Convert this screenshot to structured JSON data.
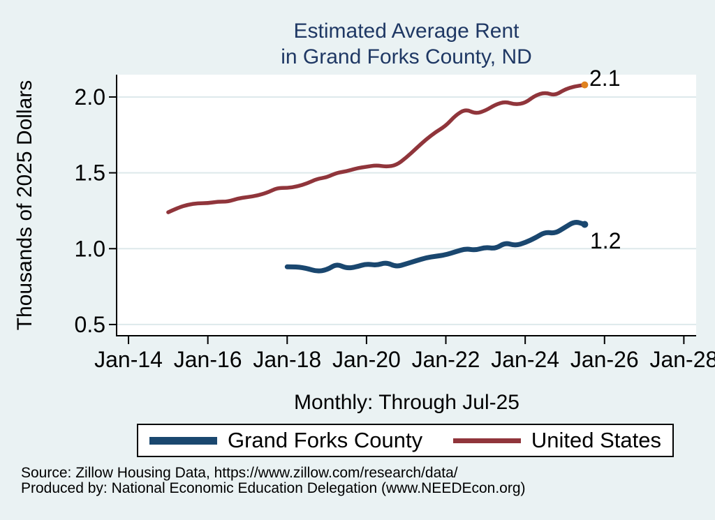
{
  "title": {
    "line1": "Estimated Average Rent",
    "line2": "in Grand Forks County, ND"
  },
  "subtitle": "Monthly: Through Jul-25",
  "y_axis": {
    "label": "Thousands of 2025 Dollars",
    "tick_labels": [
      "2.0",
      "1.5",
      "1.0",
      "0.5"
    ],
    "tick_values": [
      2.0,
      1.5,
      1.0,
      0.5
    ]
  },
  "x_axis": {
    "tick_labels": [
      "Jan-14",
      "Jan-16",
      "Jan-18",
      "Jan-20",
      "Jan-22",
      "Jan-24",
      "Jan-26",
      "Jan-28"
    ],
    "tick_values": [
      2014,
      2016,
      2018,
      2020,
      2022,
      2024,
      2026,
      2028
    ]
  },
  "end_labels": {
    "us": "2.1",
    "county": "1.2"
  },
  "legend": [
    {
      "label": "Grand Forks County",
      "color": "#1a476f"
    },
    {
      "label": "United States",
      "color": "#90353b"
    }
  ],
  "source": {
    "line1": "Source: Zillow Housing Data, https://www.zillow.com/research/data/",
    "line2": "Produced by: National Economic Education Delegation (www.NEEDEcon.org)"
  },
  "colors": {
    "background": "#eaf2f3",
    "plot_background": "#ffffff",
    "grid": "#dde9eb",
    "axis": "#000000",
    "title_text": "#1f3864",
    "county_line": "#1a476f",
    "us_line": "#90353b",
    "end_marker": "#e0821f"
  },
  "chart_data": {
    "type": "line",
    "title": "Estimated Average Rent in Grand Forks County, ND",
    "xlabel": "",
    "ylabel": "Thousands of 2025 Dollars",
    "note": "Monthly: Through Jul-25",
    "x_unit": "decimal_year",
    "xlim": [
      2013.7,
      2028.31
    ],
    "ylim": [
      0.426,
      2.147
    ],
    "grid": true,
    "legend_position": "bottom",
    "series": [
      {
        "name": "United States",
        "color": "#90353b",
        "line_width": 5.5,
        "end_label": "2.1",
        "end_marker_color": "#e0821f",
        "x": [
          2015.0,
          2015.25,
          2015.5,
          2015.75,
          2016.0,
          2016.25,
          2016.5,
          2016.75,
          2017.0,
          2017.25,
          2017.5,
          2017.75,
          2018.0,
          2018.25,
          2018.5,
          2018.75,
          2019.0,
          2019.25,
          2019.5,
          2019.75,
          2020.0,
          2020.25,
          2020.5,
          2020.75,
          2021.0,
          2021.25,
          2021.5,
          2021.75,
          2022.0,
          2022.25,
          2022.5,
          2022.75,
          2023.0,
          2023.25,
          2023.5,
          2023.75,
          2024.0,
          2024.25,
          2024.5,
          2024.75,
          2025.0,
          2025.25,
          2025.5
        ],
        "values": [
          1.24,
          1.27,
          1.29,
          1.3,
          1.3,
          1.31,
          1.31,
          1.33,
          1.34,
          1.35,
          1.37,
          1.4,
          1.4,
          1.41,
          1.43,
          1.46,
          1.47,
          1.5,
          1.51,
          1.53,
          1.54,
          1.55,
          1.54,
          1.55,
          1.6,
          1.66,
          1.72,
          1.77,
          1.81,
          1.88,
          1.92,
          1.89,
          1.91,
          1.95,
          1.97,
          1.95,
          1.96,
          2.01,
          2.03,
          2.01,
          2.05,
          2.07,
          2.08
        ]
      },
      {
        "name": "Grand Forks County",
        "color": "#1a476f",
        "line_width": 7,
        "end_label": "1.2",
        "end_marker_color": "#1a476f",
        "x": [
          2018.0,
          2018.25,
          2018.5,
          2018.75,
          2019.0,
          2019.25,
          2019.5,
          2019.75,
          2020.0,
          2020.25,
          2020.5,
          2020.75,
          2021.0,
          2021.25,
          2021.5,
          2021.75,
          2022.0,
          2022.25,
          2022.5,
          2022.75,
          2023.0,
          2023.25,
          2023.5,
          2023.75,
          2024.0,
          2024.25,
          2024.5,
          2024.75,
          2025.0,
          2025.25,
          2025.5
        ],
        "values": [
          0.88,
          0.88,
          0.87,
          0.85,
          0.86,
          0.9,
          0.87,
          0.88,
          0.9,
          0.89,
          0.91,
          0.88,
          0.9,
          0.92,
          0.94,
          0.95,
          0.96,
          0.98,
          1.0,
          0.99,
          1.01,
          1.0,
          1.04,
          1.02,
          1.04,
          1.07,
          1.11,
          1.1,
          1.14,
          1.18,
          1.16
        ]
      }
    ]
  }
}
